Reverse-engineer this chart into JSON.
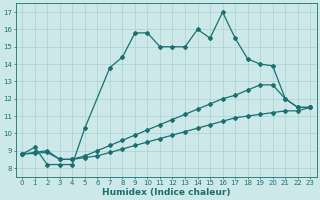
{
  "xlabel": "Humidex (Indice chaleur)",
  "background_color": "#cde8e8",
  "grid_color": "#aad0d0",
  "line_color": "#1a7070",
  "xlim": [
    -0.5,
    23.5
  ],
  "ylim": [
    7.5,
    17.5
  ],
  "xticks": [
    0,
    1,
    2,
    3,
    4,
    5,
    6,
    7,
    8,
    9,
    10,
    11,
    12,
    13,
    14,
    15,
    16,
    17,
    18,
    19,
    20,
    21,
    22,
    23
  ],
  "yticks": [
    8,
    9,
    10,
    11,
    12,
    13,
    14,
    15,
    16,
    17
  ],
  "line1_x": [
    0,
    1,
    2,
    3,
    4,
    5,
    7,
    8,
    9,
    10,
    11,
    12,
    13,
    14,
    15,
    16,
    17,
    18,
    19,
    20,
    21,
    22,
    23
  ],
  "line1_y": [
    8.8,
    9.2,
    8.2,
    8.2,
    8.2,
    10.3,
    13.8,
    14.4,
    15.8,
    15.8,
    15.0,
    15.0,
    15.0,
    16.0,
    15.5,
    17.0,
    15.5,
    14.3,
    14.0,
    13.9,
    12.0,
    11.5,
    11.5
  ],
  "line2_x": [
    0,
    1,
    2,
    3,
    4,
    5,
    6,
    7,
    8,
    9,
    10,
    11,
    12,
    13,
    14,
    15,
    16,
    17,
    18,
    19,
    20,
    21,
    22,
    23
  ],
  "line2_y": [
    8.8,
    8.9,
    9.0,
    8.5,
    8.5,
    8.7,
    9.0,
    9.3,
    9.6,
    9.9,
    10.2,
    10.5,
    10.8,
    11.1,
    11.4,
    11.7,
    12.0,
    12.2,
    12.5,
    12.8,
    12.8,
    12.0,
    11.5,
    11.5
  ],
  "line3_x": [
    0,
    1,
    2,
    3,
    4,
    5,
    6,
    7,
    8,
    9,
    10,
    11,
    12,
    13,
    14,
    15,
    16,
    17,
    18,
    19,
    20,
    21,
    22,
    23
  ],
  "line3_y": [
    8.8,
    8.85,
    8.9,
    8.5,
    8.5,
    8.6,
    8.7,
    8.9,
    9.1,
    9.3,
    9.5,
    9.7,
    9.9,
    10.1,
    10.3,
    10.5,
    10.7,
    10.9,
    11.0,
    11.1,
    11.2,
    11.3,
    11.3,
    11.5
  ],
  "marker_size": 2.0,
  "line_width": 0.9,
  "font_size_label": 6.5,
  "font_size_tick": 5.0
}
